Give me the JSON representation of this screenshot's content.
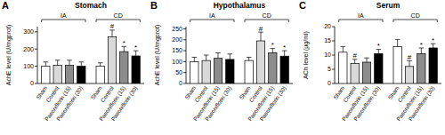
{
  "chart_data": [
    {
      "type": "bar",
      "panel_label": "A",
      "title": "Stomach",
      "y_label": "AchE level (U/mgprot)",
      "categories": [
        "Sham",
        "Control",
        "Paeoniflorin (15)",
        "Paeoniflorin (30)",
        "Sham",
        "Control",
        "Paeoniflorin (15)",
        "Paeoniflorin (30)"
      ],
      "groups": [
        "IA",
        "IA",
        "IA",
        "IA",
        "CD",
        "CD",
        "CD",
        "CD"
      ],
      "values": [
        100,
        105,
        105,
        100,
        100,
        270,
        185,
        160
      ],
      "errors": [
        25,
        30,
        30,
        25,
        20,
        40,
        30,
        30
      ],
      "annotations": [
        null,
        null,
        null,
        null,
        null,
        "#",
        "*",
        "*"
      ],
      "colors": [
        "#ffffff",
        "#d9d9d9",
        "#8c8c8c",
        "#000000",
        "#ffffff",
        "#d9d9d9",
        "#8c8c8c",
        "#000000"
      ],
      "ylim": [
        0,
        330
      ],
      "yticks": [
        0,
        100,
        200,
        300
      ],
      "grid": false
    },
    {
      "type": "bar",
      "panel_label": "B",
      "title": "Hypothalamus",
      "y_label": "AchE level (U/mgprot)",
      "categories": [
        "Sham",
        "Control",
        "Paeoniflorin (15)",
        "Paeoniflorin (30)",
        "Sham",
        "Control",
        "Paeoniflorin (15)",
        "Paeoniflorin (30)"
      ],
      "groups": [
        "IA",
        "IA",
        "IA",
        "IA",
        "CD",
        "CD",
        "CD",
        "CD"
      ],
      "values": [
        100,
        105,
        115,
        110,
        105,
        195,
        140,
        125
      ],
      "errors": [
        20,
        25,
        25,
        25,
        15,
        40,
        20,
        25
      ],
      "annotations": [
        null,
        null,
        null,
        null,
        null,
        "#",
        "*",
        "*"
      ],
      "colors": [
        "#ffffff",
        "#d9d9d9",
        "#8c8c8c",
        "#000000",
        "#ffffff",
        "#d9d9d9",
        "#8c8c8c",
        "#000000"
      ],
      "ylim": [
        0,
        260
      ],
      "yticks": [
        0,
        50,
        100,
        150,
        200,
        250
      ],
      "grid": false
    },
    {
      "type": "bar",
      "panel_label": "C",
      "title": "Serum",
      "y_label": "ACh level (µg/ml)",
      "categories": [
        "Sham",
        "Control",
        "Paeoniflorin (15)",
        "Paeoniflorin (30)",
        "Sham",
        "Control",
        "Paeoniflorin (15)",
        "Paeoniflorin (30)"
      ],
      "groups": [
        "IA",
        "IA",
        "IA",
        "IA",
        "CD",
        "CD",
        "CD",
        "CD"
      ],
      "values": [
        11,
        7,
        7.5,
        10.5,
        13,
        6,
        10.5,
        12.5
      ],
      "errors": [
        2,
        1.5,
        1.5,
        1.5,
        2.5,
        2,
        2,
        1.5
      ],
      "annotations": [
        null,
        "#",
        null,
        "*",
        null,
        "#",
        "*",
        "*"
      ],
      "colors": [
        "#ffffff",
        "#d9d9d9",
        "#8c8c8c",
        "#000000",
        "#ffffff",
        "#d9d9d9",
        "#8c8c8c",
        "#000000"
      ],
      "ylim": [
        0,
        20
      ],
      "yticks": [
        0,
        5,
        10,
        15,
        20
      ],
      "grid": false
    }
  ]
}
